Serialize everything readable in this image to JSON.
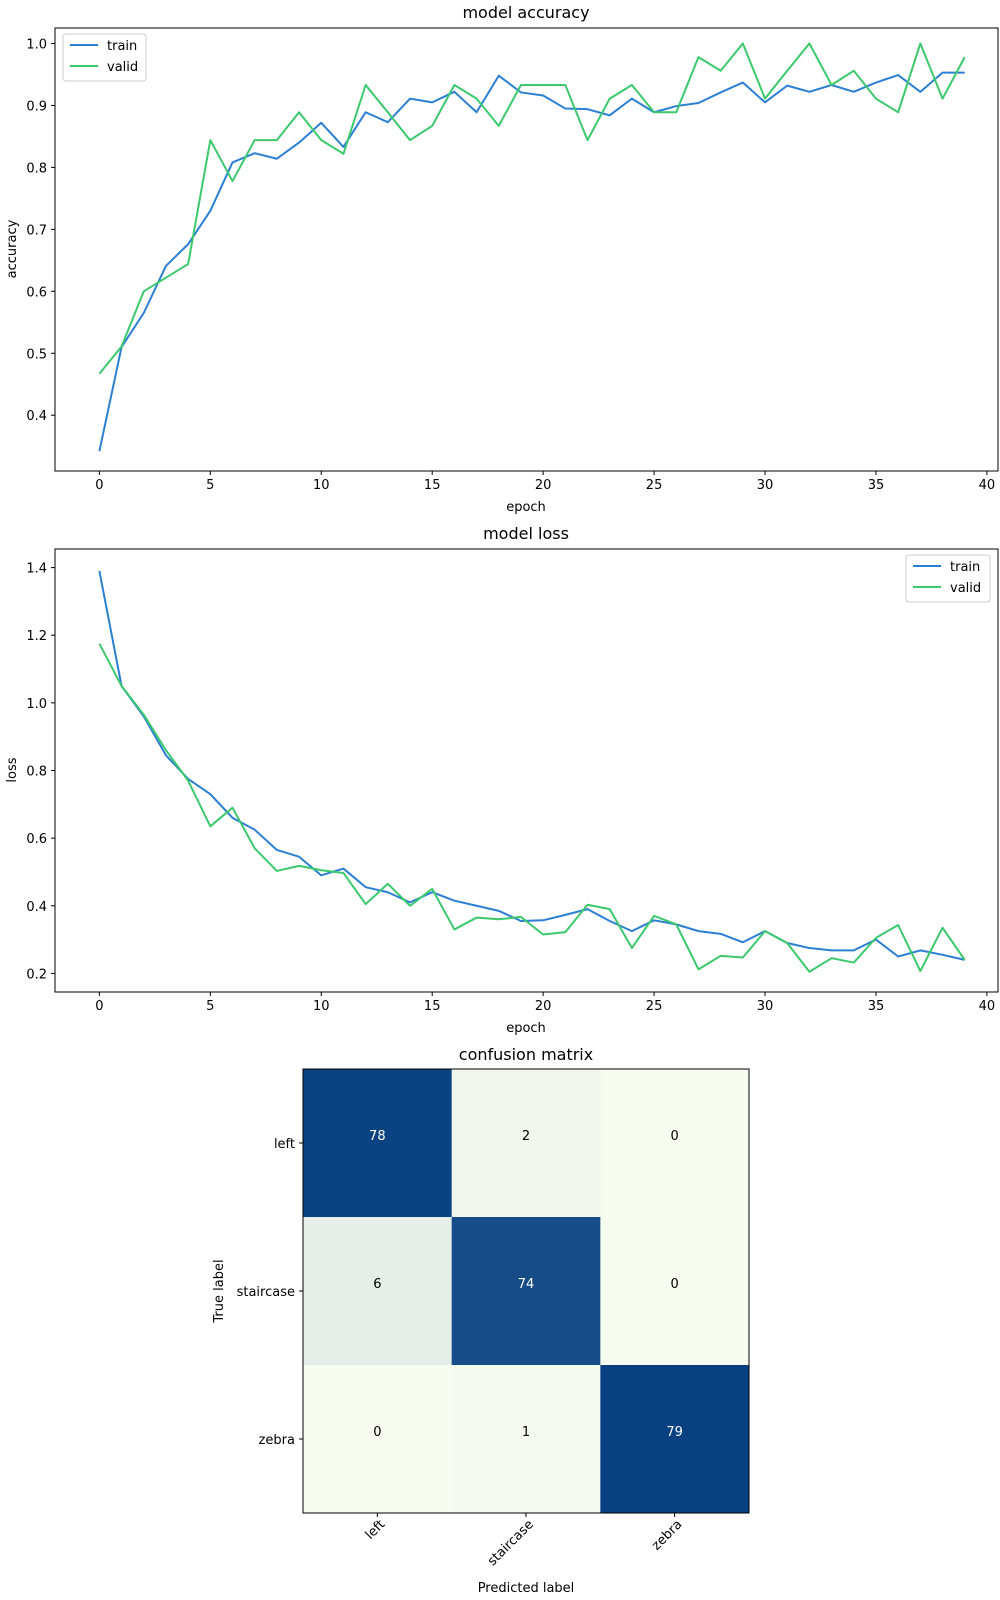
{
  "chart_data": [
    {
      "type": "line",
      "title": "model accuracy",
      "xlabel": "epoch",
      "ylabel": "accuracy",
      "xlim": [
        -2,
        40.5
      ],
      "ylim": [
        0.31,
        1.025
      ],
      "xticks": [
        0,
        5,
        10,
        15,
        20,
        25,
        30,
        35,
        40
      ],
      "yticks": [
        0.4,
        0.5,
        0.6,
        0.7,
        0.8,
        0.9,
        1.0
      ],
      "ytick_labels": [
        "0.4",
        "0.5",
        "0.6",
        "0.7",
        "0.8",
        "0.9",
        "1.0"
      ],
      "legend": "top-left",
      "grid": false,
      "x": [
        0,
        1,
        2,
        3,
        4,
        5,
        6,
        7,
        8,
        9,
        10,
        11,
        12,
        13,
        14,
        15,
        16,
        17,
        18,
        19,
        20,
        21,
        22,
        23,
        24,
        25,
        26,
        27,
        28,
        29,
        30,
        31,
        32,
        33,
        34,
        35,
        36,
        37,
        38,
        39
      ],
      "series": [
        {
          "name": "train",
          "color": "#2b7fd4",
          "values": [
            0.342,
            0.51,
            0.565,
            0.641,
            0.676,
            0.73,
            0.808,
            0.823,
            0.814,
            0.84,
            0.872,
            0.833,
            0.889,
            0.873,
            0.911,
            0.905,
            0.922,
            0.889,
            0.948,
            0.921,
            0.916,
            0.895,
            0.894,
            0.884,
            0.911,
            0.889,
            0.899,
            0.904,
            0.921,
            0.937,
            0.905,
            0.932,
            0.922,
            0.933,
            0.922,
            0.937,
            0.949,
            0.922,
            0.953,
            0.953
          ]
        },
        {
          "name": "valid",
          "color": "#3cc96d",
          "values": [
            0.467,
            0.511,
            0.6,
            0.622,
            0.644,
            0.844,
            0.778,
            0.844,
            0.844,
            0.889,
            0.844,
            0.822,
            0.933,
            0.889,
            0.844,
            0.867,
            0.933,
            0.911,
            0.867,
            0.933,
            0.933,
            0.933,
            0.844,
            0.911,
            0.933,
            0.889,
            0.889,
            0.978,
            0.956,
            1.0,
            0.911,
            0.956,
            1.0,
            0.933,
            0.956,
            0.911,
            0.889,
            1.0,
            0.911,
            0.978
          ]
        }
      ]
    },
    {
      "type": "line",
      "title": "model loss",
      "xlabel": "epoch",
      "ylabel": "loss",
      "xlim": [
        -2,
        40.5
      ],
      "ylim": [
        0.145,
        1.455
      ],
      "xticks": [
        0,
        5,
        10,
        15,
        20,
        25,
        30,
        35,
        40
      ],
      "yticks": [
        0.2,
        0.4,
        0.6,
        0.8,
        1.0,
        1.2,
        1.4
      ],
      "ytick_labels": [
        "0.2",
        "0.4",
        "0.6",
        "0.8",
        "1.0",
        "1.2",
        "1.4"
      ],
      "legend": "top-right",
      "grid": false,
      "x": [
        0,
        1,
        2,
        3,
        4,
        5,
        6,
        7,
        8,
        9,
        10,
        11,
        12,
        13,
        14,
        15,
        16,
        17,
        18,
        19,
        20,
        21,
        22,
        23,
        24,
        25,
        26,
        27,
        28,
        29,
        30,
        31,
        32,
        33,
        34,
        35,
        36,
        37,
        38,
        39
      ],
      "series": [
        {
          "name": "train",
          "color": "#2b7fd4",
          "values": [
            1.39,
            1.05,
            0.96,
            0.845,
            0.775,
            0.73,
            0.66,
            0.625,
            0.565,
            0.545,
            0.49,
            0.51,
            0.455,
            0.44,
            0.41,
            0.44,
            0.415,
            0.4,
            0.385,
            0.355,
            0.357,
            0.373,
            0.39,
            0.355,
            0.325,
            0.357,
            0.345,
            0.325,
            0.317,
            0.292,
            0.325,
            0.29,
            0.275,
            0.268,
            0.268,
            0.3,
            0.25,
            0.268,
            0.255,
            0.24
          ]
        },
        {
          "name": "valid",
          "color": "#3cc96d",
          "values": [
            1.175,
            1.05,
            0.965,
            0.86,
            0.77,
            0.635,
            0.69,
            0.57,
            0.503,
            0.518,
            0.505,
            0.497,
            0.405,
            0.465,
            0.4,
            0.45,
            0.33,
            0.365,
            0.36,
            0.367,
            0.315,
            0.322,
            0.403,
            0.39,
            0.275,
            0.37,
            0.345,
            0.212,
            0.252,
            0.247,
            0.325,
            0.29,
            0.205,
            0.245,
            0.232,
            0.305,
            0.343,
            0.207,
            0.335,
            0.24
          ]
        }
      ]
    },
    {
      "type": "heatmap",
      "title": "confusion matrix",
      "xlabel": "Predicted label",
      "ylabel": "True label",
      "row_labels": [
        "left",
        "staircase",
        "zebra"
      ],
      "col_labels": [
        "left",
        "staircase",
        "zebra"
      ],
      "values": [
        [
          78,
          2,
          0
        ],
        [
          6,
          74,
          0
        ],
        [
          0,
          1,
          79
        ]
      ],
      "value_labels": [
        [
          "78",
          "2",
          "0"
        ],
        [
          "6",
          "74",
          "0"
        ],
        [
          "0",
          "1",
          "79"
        ]
      ],
      "vmax": 79,
      "colormap": "GnBu"
    }
  ]
}
